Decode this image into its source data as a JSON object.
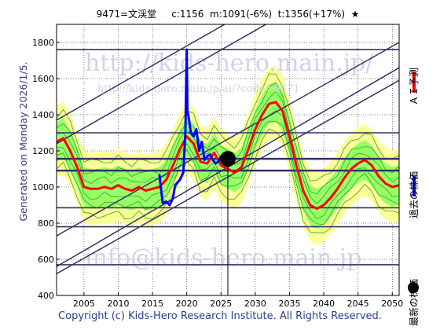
{
  "header": {
    "title": "9471=文渓堂     c:1156  m:1091(-6%)  t:1356(+17%)  ★"
  },
  "side_label": "Generated on Monday 2026/1/5.",
  "footer": "Copyright (c) Kids-Hero Research Institute. All Rights Reserved.",
  "watermarks": {
    "url": "http://kids-hero.main.jp/",
    "url_small": "http://kids-hero.main.jp/ai/?code=9471",
    "email": "info@kids-hero.main.jp"
  },
  "legend": {
    "forecast": "ＡＩ予測",
    "past": "過去の株価",
    "latest": "最新の株価"
  },
  "colors": {
    "forecast": "#ff0000",
    "past": "#0000ff",
    "latest": "#000000",
    "band_fill": "#99ff66",
    "band_outer": "#ffff99",
    "band_lines": "#22aa22",
    "trend": "#333366"
  },
  "chart_data": {
    "type": "line",
    "title": "9471=文渓堂     c:1156  m:1091(-6%)  t:1356(+17%)  ★",
    "xlim": [
      2001,
      2051
    ],
    "ylim": [
      400,
      1900
    ],
    "x_ticks": [
      2005,
      2010,
      2015,
      2020,
      2025,
      2030,
      2035,
      2040,
      2045,
      2050
    ],
    "y_ticks": [
      400,
      600,
      800,
      1000,
      1200,
      1400,
      1600,
      1800
    ],
    "grid": true,
    "current": {
      "x": 2026.0,
      "y": 1156
    },
    "horizontal_levels": [
      570,
      780,
      885,
      1091,
      1156,
      1300,
      1760
    ],
    "trend_lines": [
      {
        "x": [
          2001,
          2051
        ],
        "y": [
          730,
          1800
        ]
      },
      {
        "x": [
          2001,
          2051
        ],
        "y": [
          560,
          1660
        ]
      },
      {
        "x": [
          2001,
          2051
        ],
        "y": [
          520,
          1590
        ]
      },
      {
        "x": [
          2001,
          2051
        ],
        "y": [
          1370,
          2450
        ]
      },
      {
        "x": [
          2001,
          2051
        ],
        "y": [
          1240,
          2320
        ]
      }
    ],
    "series": [
      {
        "name": "ＡＩ予測",
        "x": [
          2001,
          2002,
          2003,
          2004,
          2005,
          2006,
          2007,
          2008,
          2009,
          2010,
          2011,
          2012,
          2013,
          2014,
          2015,
          2016,
          2017,
          2018,
          2019,
          2020,
          2021,
          2022,
          2023,
          2024,
          2025,
          2026,
          2027,
          2028,
          2029,
          2030,
          2031,
          2032,
          2033,
          2034,
          2035,
          2036,
          2037,
          2038,
          2039,
          2040,
          2041,
          2042,
          2043,
          2044,
          2045,
          2046,
          2047,
          2048,
          2049,
          2050,
          2051
        ],
        "values": [
          1250,
          1270,
          1200,
          1110,
          1000,
          990,
          990,
          1000,
          990,
          1010,
          990,
          980,
          1000,
          980,
          990,
          1000,
          1040,
          1120,
          1210,
          1280,
          1240,
          1140,
          1130,
          1190,
          1120,
          1100,
          1080,
          1110,
          1210,
          1320,
          1400,
          1460,
          1470,
          1420,
          1280,
          1120,
          980,
          900,
          880,
          900,
          940,
          990,
          1050,
          1100,
          1130,
          1150,
          1120,
          1060,
          1020,
          1000,
          1010
        ]
      },
      {
        "name": "過去の株価",
        "x": [
          2016.0,
          2016.5,
          2017.0,
          2017.5,
          2018.0,
          2018.3,
          2019.0,
          2019.5,
          2019.8,
          2020.0,
          2020.1,
          2020.3,
          2020.6,
          2021.0,
          2021.4,
          2021.8,
          2022.2,
          2022.6,
          2023.0,
          2023.4,
          2023.8,
          2024.2,
          2024.6,
          2025.0,
          2025.4,
          2025.8,
          2026.0
        ],
        "values": [
          1070,
          910,
          920,
          900,
          940,
          1010,
          1040,
          1080,
          1300,
          1760,
          1420,
          1380,
          1300,
          1280,
          1320,
          1200,
          1250,
          1150,
          1170,
          1180,
          1150,
          1130,
          1140,
          1170,
          1150,
          1160,
          1156
        ]
      }
    ]
  }
}
